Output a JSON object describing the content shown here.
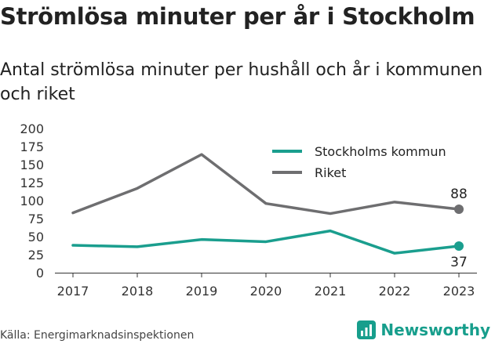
{
  "chart_data": {
    "type": "line",
    "title": "Strömlösa minuter per år i Stockholm",
    "subtitle": "Antal strömlösa minuter per hushåll och år i kommunen och riket",
    "categories": [
      "2017",
      "2018",
      "2019",
      "2020",
      "2021",
      "2022",
      "2023"
    ],
    "yticks": [
      "0",
      "25",
      "50",
      "75",
      "100",
      "125",
      "150",
      "175",
      "200"
    ],
    "ylim": [
      0,
      200
    ],
    "grid": false,
    "legend_position": "top-right",
    "series": [
      {
        "name": "Stockholms kommun",
        "color": "#1a9e8e",
        "values": [
          38,
          36,
          46,
          43,
          58,
          27,
          37
        ],
        "end_label": "37"
      },
      {
        "name": "Riket",
        "color": "#6e6e70",
        "values": [
          83,
          117,
          164,
          96,
          82,
          98,
          88
        ],
        "end_label": "88"
      }
    ]
  },
  "footer": {
    "source": "Källa: Energimarknadsinspektionen",
    "brand": "Newsworthy"
  }
}
